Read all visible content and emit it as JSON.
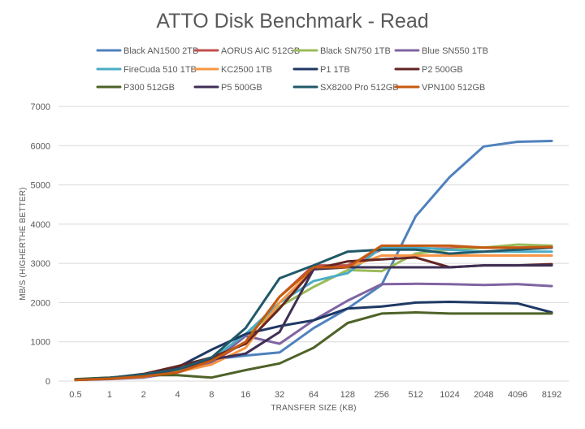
{
  "chart_data": {
    "type": "line",
    "title": "ATTO Disk Benchmark - Read",
    "xlabel": "TRANSFER SIZE (KB)",
    "ylabel": "MB/S (HIGHERTHE BETTER)",
    "ylim": [
      0,
      7000
    ],
    "yticks": [
      0,
      1000,
      2000,
      3000,
      4000,
      5000,
      6000,
      7000
    ],
    "grid": true,
    "legend_position": "top",
    "categories": [
      "0.5",
      "1",
      "2",
      "4",
      "8",
      "16",
      "32",
      "64",
      "128",
      "256",
      "512",
      "1024",
      "2048",
      "4096",
      "8192"
    ],
    "series": [
      {
        "name": "Black AN1500 2TB",
        "color": "#4f81bd",
        "values": [
          40,
          60,
          110,
          250,
          550,
          650,
          730,
          1350,
          1850,
          2450,
          4200,
          5200,
          5980,
          6100,
          6120
        ]
      },
      {
        "name": "AORUS AIC 512GB",
        "color": "#c0504d",
        "values": [
          30,
          60,
          120,
          230,
          480,
          1000,
          2150,
          2950,
          2950,
          3350,
          3380,
          3380,
          3400,
          3400,
          3400
        ]
      },
      {
        "name": "Black SN750 1TB",
        "color": "#9bbb59",
        "values": [
          30,
          60,
          130,
          230,
          470,
          1150,
          1900,
          2400,
          2830,
          2800,
          3250,
          3350,
          3400,
          3480,
          3450
        ]
      },
      {
        "name": "Blue SN550 1TB",
        "color": "#8064a2",
        "values": [
          30,
          50,
          90,
          220,
          460,
          1150,
          950,
          1550,
          2050,
          2470,
          2480,
          2470,
          2450,
          2470,
          2420
        ]
      },
      {
        "name": "FireCuda 510 1TB",
        "color": "#4bacc6",
        "values": [
          40,
          70,
          140,
          280,
          560,
          1200,
          2000,
          2550,
          2750,
          3400,
          3400,
          3350,
          3300,
          3300,
          3300
        ]
      },
      {
        "name": "KC2500 1TB",
        "color": "#f79646",
        "values": [
          30,
          60,
          110,
          230,
          420,
          850,
          2000,
          2850,
          2900,
          3200,
          3200,
          3200,
          3200,
          3200,
          3200
        ]
      },
      {
        "name": "P1 1TB",
        "color": "#1f3864",
        "values": [
          40,
          80,
          160,
          350,
          800,
          1200,
          1400,
          1550,
          1850,
          1900,
          2000,
          2020,
          2000,
          1980,
          1750
        ]
      },
      {
        "name": "P2 500GB",
        "color": "#632523",
        "values": [
          40,
          80,
          180,
          380,
          600,
          950,
          1850,
          2850,
          3050,
          3100,
          3150,
          2900,
          2950,
          2950,
          2980
        ]
      },
      {
        "name": "P300 512GB",
        "color": "#4f6228",
        "values": [
          50,
          90,
          150,
          150,
          90,
          280,
          450,
          850,
          1480,
          1720,
          1750,
          1720,
          1720,
          1720,
          1720
        ]
      },
      {
        "name": "P5 500GB",
        "color": "#3f2f54",
        "values": [
          30,
          60,
          130,
          300,
          550,
          700,
          1250,
          2850,
          2900,
          2900,
          2900,
          2900,
          2950,
          2950,
          2950
        ]
      },
      {
        "name": "SX8200 Pro 512GB",
        "color": "#215968",
        "values": [
          40,
          80,
          170,
          300,
          600,
          1350,
          2620,
          2950,
          3300,
          3350,
          3350,
          3250,
          3300,
          3350,
          3400
        ]
      },
      {
        "name": "VPN100 512GB",
        "color": "#c55a11",
        "values": [
          30,
          60,
          120,
          220,
          520,
          1000,
          2150,
          2900,
          2900,
          3450,
          3450,
          3450,
          3400,
          3400,
          3420
        ]
      }
    ]
  }
}
